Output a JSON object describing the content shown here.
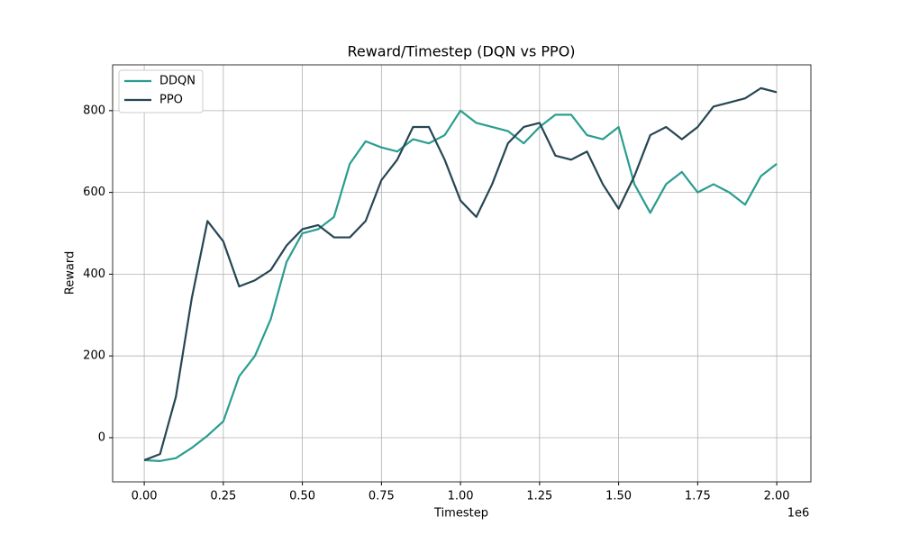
{
  "chart_data": {
    "type": "line",
    "title": "Reward/Timestep (DQN vs PPO)",
    "x_label": "Timestep",
    "y_label": "Reward",
    "x_offset_label": "1e6",
    "x": [
      0,
      50000,
      100000,
      150000,
      200000,
      250000,
      300000,
      350000,
      400000,
      450000,
      500000,
      550000,
      600000,
      650000,
      700000,
      750000,
      800000,
      850000,
      900000,
      950000,
      1000000,
      1050000,
      1100000,
      1150000,
      1200000,
      1250000,
      1300000,
      1350000,
      1400000,
      1450000,
      1500000,
      1550000,
      1600000,
      1650000,
      1700000,
      1750000,
      1800000,
      1850000,
      1900000,
      1950000,
      2000000
    ],
    "series": [
      {
        "name": "DDQN",
        "color": "#2a9d8f",
        "values": [
          -55,
          -57,
          -50,
          -25,
          5,
          40,
          150,
          200,
          290,
          430,
          500,
          510,
          540,
          670,
          725,
          710,
          700,
          730,
          720,
          740,
          800,
          770,
          760,
          750,
          720,
          760,
          790,
          790,
          740,
          730,
          760,
          620,
          550,
          620,
          650,
          600,
          620,
          600,
          570,
          640,
          670
        ]
      },
      {
        "name": "PPO",
        "color": "#264653",
        "values": [
          -55,
          -40,
          100,
          340,
          530,
          480,
          370,
          385,
          410,
          470,
          510,
          520,
          490,
          490,
          530,
          630,
          680,
          760,
          760,
          680,
          580,
          540,
          620,
          720,
          760,
          770,
          690,
          680,
          700,
          620,
          560,
          640,
          740,
          760,
          730,
          760,
          810,
          820,
          830,
          855,
          845
        ]
      }
    ],
    "xlim": [
      -100000,
      2108000
    ],
    "xticks": [
      {
        "value": 0,
        "label": "0.00"
      },
      {
        "value": 250000,
        "label": "0.25"
      },
      {
        "value": 500000,
        "label": "0.50"
      },
      {
        "value": 750000,
        "label": "0.75"
      },
      {
        "value": 1000000,
        "label": "1.00"
      },
      {
        "value": 1250000,
        "label": "1.25"
      },
      {
        "value": 1500000,
        "label": "1.50"
      },
      {
        "value": 1750000,
        "label": "1.75"
      },
      {
        "value": 2000000,
        "label": "2.00"
      }
    ],
    "ylim": [
      -108,
      912
    ],
    "yticks": [
      0,
      200,
      400,
      600,
      800
    ],
    "grid": true,
    "legend": "upper left"
  }
}
